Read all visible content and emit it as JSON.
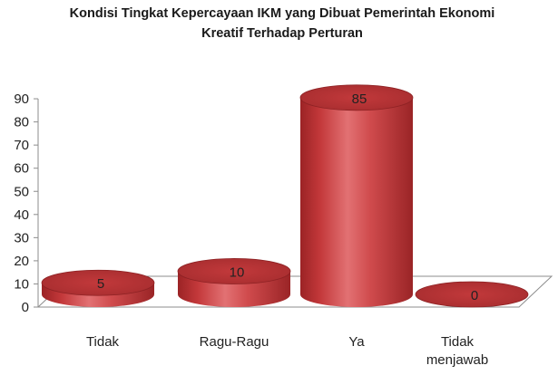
{
  "chart_data": {
    "type": "bar",
    "style": "3d-cylinder",
    "title_lines": [
      "Kondisi Tingkat Kepercayaan IKM yang Dibuat Pemerintah Ekonomi",
      "Kreatif Terhadap Perturan"
    ],
    "categories": [
      [
        "Tidak"
      ],
      [
        "Ragu-Ragu"
      ],
      [
        "Ya"
      ],
      [
        "Tidak",
        "menjawab"
      ]
    ],
    "values": [
      5,
      10,
      85,
      0
    ],
    "value_labels": [
      "5",
      "10",
      "85",
      "0"
    ],
    "ylim": [
      0,
      90
    ],
    "y_ticks": [
      0,
      10,
      20,
      30,
      40,
      50,
      60,
      70,
      80,
      90
    ],
    "grid": false,
    "legend": "none",
    "colors": {
      "bar_body": "#c0393b",
      "bar_top": "#b53234",
      "bar_top_edge": "#8e2224",
      "axis": "#8c8c8c",
      "floor": "#ffffff"
    }
  }
}
